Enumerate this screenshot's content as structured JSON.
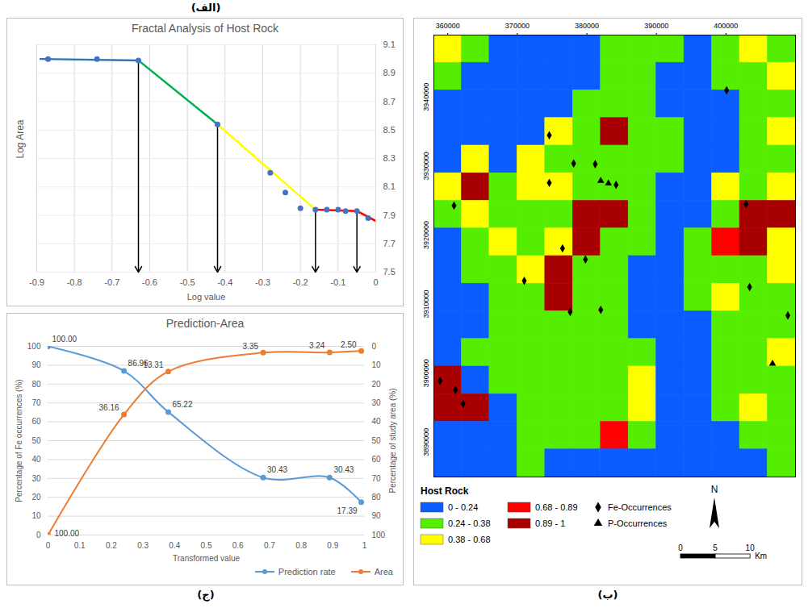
{
  "chart_data": [
    {
      "type": "scatter",
      "panel": "(الف)",
      "title": "Fractal Analysis of Host Rock",
      "x_label": "Log value",
      "y_label": "Log Area",
      "xlim": [
        -0.9,
        0
      ],
      "ylim": [
        7.5,
        9.1
      ],
      "xticks": [
        -0.9,
        -0.8,
        -0.7,
        -0.6,
        -0.5,
        -0.4,
        -0.3,
        -0.2,
        -0.1,
        0
      ],
      "yticks": [
        7.5,
        7.7,
        7.9,
        8.1,
        8.3,
        8.5,
        8.7,
        8.9,
        9.1
      ],
      "grid": true,
      "series": [
        {
          "type": "line",
          "color": "#2e75b6",
          "x": [
            -0.89,
            -0.63
          ],
          "values": [
            9.0,
            8.99
          ]
        },
        {
          "type": "line",
          "color": "#00b050",
          "x": [
            -0.63,
            -0.42
          ],
          "values": [
            8.99,
            8.54
          ]
        },
        {
          "type": "line",
          "color": "#ffff00",
          "x": [
            -0.42,
            -0.16
          ],
          "values": [
            8.54,
            7.94
          ]
        },
        {
          "type": "line",
          "color": "#ff0000",
          "x": [
            -0.16,
            -0.05,
            0
          ],
          "values": [
            7.94,
            7.93,
            7.86
          ]
        },
        {
          "type": "scatter",
          "marker": "circle",
          "color": "#4472c4",
          "x": [
            -0.87,
            -0.74,
            -0.63,
            -0.42,
            -0.28,
            -0.24,
            -0.2,
            -0.16,
            -0.13,
            -0.1,
            -0.08,
            -0.05,
            -0.02
          ],
          "values": [
            9.0,
            9.0,
            8.99,
            8.54,
            8.2,
            8.06,
            7.95,
            7.94,
            7.94,
            7.94,
            7.93,
            7.93,
            7.88
          ]
        }
      ],
      "arrows": {
        "x": [
          -0.63,
          -0.42,
          -0.16,
          -0.05
        ],
        "y": [
          8.99,
          8.54,
          7.94,
          7.93
        ]
      }
    },
    {
      "type": "map",
      "panel": "(ب)",
      "legend_title": "Host Rock",
      "legend": "bottom",
      "xlim": [
        358000,
        410000
      ],
      "ylim": [
        3887000,
        3951000
      ],
      "xticks": [
        360000,
        370000,
        380000,
        390000,
        400000
      ],
      "yticks": [
        3890000,
        3900000,
        3910000,
        3920000,
        3930000,
        3940000
      ],
      "classes": [
        {
          "name": "0 - 0.24",
          "color": "#0a5cff"
        },
        {
          "name": "0.24 - 0.38",
          "color": "#55ee00"
        },
        {
          "name": "0.38 - 0.68",
          "color": "#ffff00"
        },
        {
          "name": "0.68 - 0.89",
          "color": "#ff0000"
        },
        {
          "name": "0.89 - 1",
          "color": "#a80000"
        }
      ],
      "cells": [
        [
          2,
          1,
          0,
          0,
          0,
          0,
          1,
          1,
          1,
          0,
          1,
          2,
          1
        ],
        [
          1,
          0,
          0,
          0,
          0,
          0,
          1,
          1,
          0,
          0,
          1,
          1,
          2
        ],
        [
          0,
          0,
          0,
          0,
          0,
          1,
          1,
          1,
          0,
          0,
          0,
          1,
          1
        ],
        [
          0,
          0,
          0,
          0,
          2,
          1,
          4,
          1,
          1,
          0,
          0,
          1,
          2
        ],
        [
          0,
          2,
          0,
          2,
          1,
          1,
          1,
          1,
          1,
          0,
          0,
          1,
          1
        ],
        [
          2,
          4,
          1,
          2,
          2,
          1,
          1,
          1,
          0,
          0,
          2,
          1,
          2
        ],
        [
          1,
          2,
          1,
          1,
          1,
          4,
          4,
          1,
          0,
          0,
          1,
          4,
          4
        ],
        [
          0,
          1,
          2,
          1,
          2,
          4,
          1,
          1,
          0,
          1,
          3,
          4,
          2
        ],
        [
          0,
          1,
          1,
          2,
          4,
          1,
          1,
          0,
          0,
          1,
          1,
          1,
          2
        ],
        [
          0,
          0,
          1,
          1,
          4,
          1,
          1,
          0,
          0,
          1,
          2,
          1,
          1
        ],
        [
          0,
          0,
          1,
          1,
          1,
          1,
          1,
          0,
          0,
          0,
          1,
          1,
          1
        ],
        [
          0,
          1,
          1,
          1,
          1,
          1,
          1,
          1,
          0,
          0,
          1,
          1,
          2
        ],
        [
          4,
          0,
          1,
          1,
          1,
          1,
          1,
          2,
          0,
          0,
          1,
          1,
          1
        ],
        [
          4,
          4,
          0,
          1,
          1,
          1,
          1,
          2,
          0,
          0,
          1,
          2,
          1
        ],
        [
          0,
          0,
          0,
          1,
          1,
          1,
          3,
          1,
          0,
          0,
          0,
          1,
          1
        ],
        [
          0,
          0,
          0,
          1,
          0,
          0,
          0,
          0,
          0,
          0,
          0,
          0,
          1
        ]
      ],
      "series": [
        {
          "name": "Fe-Occurrences",
          "type": "scatter",
          "marker": "diamond",
          "color": "#000000",
          "x": [
            400100,
            374600,
            378100,
            381200,
            384200,
            374600,
            402900,
            360900,
            376500,
            379800,
            371000,
            382000,
            377600,
            403400,
            408900,
            358900,
            361100,
            362200
          ],
          "y": [
            3943000,
            3936500,
            3932400,
            3932300,
            3929300,
            3929600,
            3926500,
            3926300,
            3920100,
            3918500,
            3915400,
            3911200,
            3910900,
            3914500,
            3910400,
            3900900,
            3899600,
            3897600
          ]
        },
        {
          "name": "P-Occurrences",
          "type": "scatter",
          "marker": "triangle",
          "color": "#000000",
          "x": [
            382000,
            383100,
            406700
          ],
          "y": [
            3929900,
            3929500,
            3903400
          ]
        }
      ],
      "north": "N",
      "scale_bar": {
        "ticks": [
          0,
          5,
          10
        ],
        "unit": "Km"
      }
    },
    {
      "type": "line",
      "panel": "(ج)",
      "title": "Prediction-Area",
      "x_label": "Transformed value",
      "y_label": "Percentage of Fe occurrences (%)",
      "y2_label": "Percentage of study area (%)",
      "xlim": [
        0,
        1
      ],
      "ylim": [
        0,
        100
      ],
      "y2lim": [
        100,
        0
      ],
      "xticks": [
        0,
        0.1,
        0.2,
        0.3,
        0.4,
        0.5,
        0.6,
        0.7,
        0.8,
        0.9,
        1
      ],
      "yticks": [
        0,
        10,
        20,
        30,
        40,
        50,
        60,
        70,
        80,
        90,
        100
      ],
      "y2ticks": [
        0,
        10,
        20,
        30,
        40,
        50,
        60,
        70,
        80,
        90,
        100
      ],
      "grid": true,
      "legend": "bottom-right",
      "data_labels": true,
      "marker": "circle",
      "x": [
        0,
        0.24,
        0.38,
        0.68,
        0.89,
        0.99
      ],
      "series": [
        {
          "name": "Prediction rate",
          "color": "#5b9bd5",
          "values": [
            100,
            86.96,
            65.22,
            30.43,
            30.43,
            17.39
          ],
          "value_labels": [
            "100.00",
            "86.96",
            "65.22",
            "30.43",
            "30.43",
            "17.39"
          ]
        },
        {
          "name": "Area",
          "color": "#ed7d31",
          "axis": "y2",
          "values": [
            100,
            36.16,
            13.31,
            3.35,
            3.24,
            2.5
          ],
          "value_labels": [
            "100.00",
            "36.16",
            "13.31",
            "3.35",
            "3.24",
            "2.50"
          ]
        }
      ]
    }
  ]
}
